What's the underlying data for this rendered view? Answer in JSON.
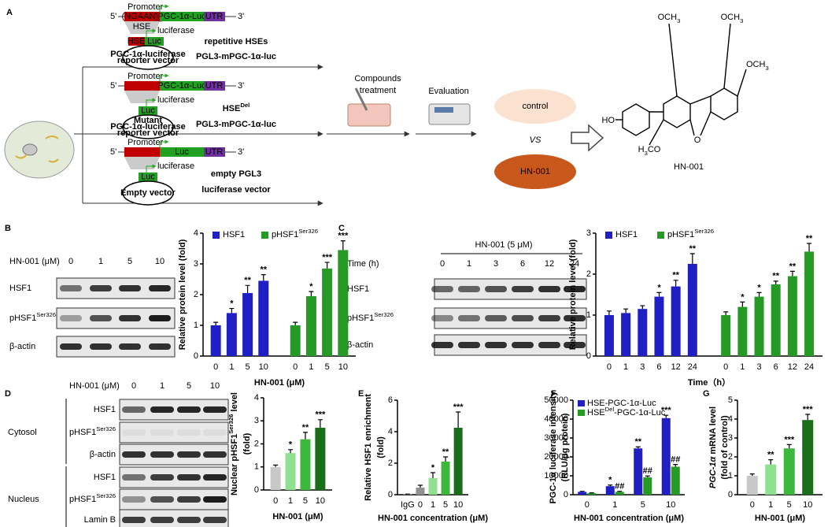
{
  "panel_labels": [
    "A",
    "B",
    "C",
    "D",
    "E",
    "F",
    "G"
  ],
  "diagram": {
    "constructs": [
      {
        "five": "5'",
        "promoter": "Promoter",
        "insert": [
          "(NGAAN)",
          {
            "sub": "n"
          }
        ],
        "gene": "PGC-1α-Luc",
        "utr": "UTR",
        "three": "3'",
        "hse": "HSE",
        "luc_arrow": "luciferase",
        "box_hse": "HSE",
        "box_luc": "Luc",
        "vector": [
          "PGC-1α-luciferase",
          "reporter vector"
        ],
        "title": [
          "repetitive HSEs",
          "PGL3-mPGC-1α-luc"
        ]
      },
      {
        "five": "5'",
        "promoter": "Promoter",
        "gene": "PGC-1α-Luc",
        "utr": "UTR",
        "three": "3'",
        "luc_arrow": "luciferase",
        "box_luc": "Luc",
        "vector": [
          "Mutant",
          "PGC-1α-luciferase",
          "reporter vector"
        ],
        "title": [
          [
            "HSE",
            {
              "sup": "Del"
            }
          ],
          "PGL3-mPGC-1α-luc"
        ]
      },
      {
        "five": "5'",
        "promoter": "Promoter",
        "gene": "Luc",
        "utr": "UTR",
        "three": "3'",
        "luc_arrow": "luciferase",
        "box_luc": "Luc",
        "vector": [
          "Empty vector"
        ],
        "title": [
          "empty PGL3",
          "luciferase vector"
        ]
      }
    ],
    "steps": [
      [
        "Compounds",
        "treatment"
      ],
      [
        "Evaluation"
      ]
    ],
    "compare": {
      "control": "control",
      "vs": "VS",
      "compound": "HN-001"
    },
    "structure": {
      "ho": "HO",
      "ome1": [
        "OCH",
        {
          "sub": "3"
        }
      ],
      "ome2": [
        "OCH",
        {
          "sub": "3"
        }
      ],
      "ome3": [
        "OCH",
        {
          "sub": "3"
        }
      ],
      "ome4": [
        "H",
        {
          "sub": "3"
        },
        "CO"
      ],
      "o": "O",
      "name": "HN-001"
    }
  },
  "blots": [
    {
      "header": "HN-001 (μM)",
      "lanes": [
        "0",
        "1",
        "5",
        "10"
      ],
      "rows": [
        "HSF1",
        [
          "pHSF1",
          {
            "sup": "Ser326"
          }
        ],
        "β-actin"
      ]
    },
    {
      "header": "HN-001 (5 μM)",
      "lane_title": "Time (h)",
      "lanes": [
        "0",
        "1",
        "3",
        "6",
        "12",
        "24"
      ],
      "rows": [
        "HSF1",
        [
          "pHSF1",
          {
            "sup": "Ser326"
          }
        ],
        "β-actin"
      ]
    },
    {
      "header": "HN-001 (μM)",
      "lanes": [
        "0",
        "1",
        "5",
        "10"
      ],
      "groups": [
        {
          "name": "Cytosol",
          "rows": [
            "HSF1",
            [
              "pHSF1",
              {
                "sup": "Ser326"
              }
            ],
            "β-actin"
          ]
        },
        {
          "name": "Nucleus",
          "rows": [
            "HSF1",
            [
              "pHSF1",
              {
                "sup": "Ser326"
              }
            ],
            "Lamin B"
          ]
        }
      ]
    }
  ],
  "chart_data": [
    {
      "type": "bar",
      "categories": [
        "0",
        "1",
        "5",
        "10"
      ],
      "legend": "top",
      "series": [
        {
          "name": "HSF1",
          "color": "#1f1fc4",
          "values": [
            1.0,
            1.4,
            2.05,
            2.45
          ],
          "errors": [
            0.1,
            0.15,
            0.25,
            0.2
          ],
          "significance": [
            null,
            "*",
            "**",
            "**"
          ]
        },
        {
          "name": [
            "pHSF1",
            {
              "sup": "Ser326"
            }
          ],
          "color": "#259a25",
          "values": [
            1.0,
            1.95,
            2.85,
            3.45
          ],
          "errors": [
            0.1,
            0.15,
            0.2,
            0.3
          ],
          "significance": [
            null,
            "*",
            "***",
            "***"
          ]
        }
      ],
      "ylim": [
        0,
        4
      ],
      "yticks": [
        0,
        1,
        2,
        3,
        4
      ],
      "ylabel": [
        "Relative protein level (fold)"
      ],
      "xlabel": "HN-001 (μM)"
    },
    {
      "type": "bar",
      "categories": [
        "0",
        "1",
        "3",
        "6",
        "12",
        "24"
      ],
      "legend": "top",
      "series": [
        {
          "name": "HSF1",
          "color": "#1f1fc4",
          "values": [
            1.0,
            1.05,
            1.15,
            1.45,
            1.7,
            2.25
          ],
          "errors": [
            0.1,
            0.1,
            0.08,
            0.1,
            0.15,
            0.25
          ],
          "significance": [
            null,
            null,
            null,
            "*",
            "**",
            "**"
          ]
        },
        {
          "name": [
            "pHSF1",
            {
              "sup": "Ser326"
            }
          ],
          "color": "#259a25",
          "values": [
            1.0,
            1.2,
            1.45,
            1.75,
            1.95,
            2.55
          ],
          "errors": [
            0.08,
            0.12,
            0.1,
            0.08,
            0.12,
            0.2
          ],
          "significance": [
            null,
            "*",
            "*",
            "**",
            "**",
            "**"
          ]
        }
      ],
      "ylim": [
        0,
        3
      ],
      "yticks": [
        0,
        1,
        2,
        3
      ],
      "ylabel": [
        "Relative protein level (fold)"
      ],
      "xlabel": "Time（h）"
    },
    {
      "type": "bar",
      "categories": [
        "0",
        "1",
        "5",
        "10"
      ],
      "color": [
        "#c8c8c8",
        "#8fe08f",
        "#3cb83c",
        "#1a6e1a"
      ],
      "values": [
        1.0,
        1.6,
        2.2,
        2.7
      ],
      "errors": [
        0.08,
        0.15,
        0.3,
        0.35
      ],
      "significance": [
        null,
        "*",
        "**",
        "***"
      ],
      "ylim": [
        0,
        4
      ],
      "yticks": [
        0,
        1,
        2,
        3,
        4
      ],
      "ylabel": [
        [
          "Nuclear pHSF1",
          {
            "sup": "Ser326"
          },
          " level"
        ],
        "(fold)"
      ],
      "xlabel": "HN-001 (μM)"
    },
    {
      "type": "bar",
      "categories": [
        "IgG",
        "0",
        "1",
        "5",
        "10"
      ],
      "color": [
        "#dcdcdc",
        "#909090",
        "#8fe08f",
        "#3cb83c",
        "#1a6e1a"
      ],
      "values": [
        0.02,
        0.45,
        1.05,
        2.1,
        4.25
      ],
      "errors": [
        0.02,
        0.15,
        0.35,
        0.3,
        1.0
      ],
      "significance": [
        null,
        null,
        "*",
        "**",
        "***"
      ],
      "ylim": [
        0,
        6
      ],
      "yticks": [
        0,
        2,
        4,
        6
      ],
      "ylabel": [
        "Relative HSF1 enrichment",
        "(fold)"
      ],
      "xlabel": "HN-001 concentration (μM)"
    },
    {
      "type": "bar",
      "categories": [
        "0",
        "1",
        "5",
        "10"
      ],
      "legend": "top-left",
      "series": [
        {
          "name": "HSE-PGC-1α-Luc",
          "color": "#1f1fc4",
          "values": [
            1500,
            4500,
            24500,
            40500
          ],
          "errors": [
            300,
            600,
            800,
            1500
          ],
          "significance": [
            null,
            "*",
            "**",
            "***"
          ]
        },
        {
          "name": [
            "HSE",
            {
              "sup": "Del"
            },
            "-PGC-1α-Luc"
          ],
          "color": "#259a25",
          "values": [
            800,
            1500,
            9200,
            14800
          ],
          "errors": [
            200,
            300,
            700,
            1200
          ],
          "significance": [
            null,
            "##",
            "##",
            "##"
          ]
        }
      ],
      "ylim": [
        0,
        50000
      ],
      "yticks": [
        0,
        10000,
        20000,
        30000,
        40000,
        50000
      ],
      "ylabel": [
        "PGC-1α luciferase intensity",
        "(RLU/μg protein)"
      ],
      "xlabel": "HN-001 concentration (μM)"
    },
    {
      "type": "bar",
      "categories": [
        "0",
        "1",
        "5",
        "10"
      ],
      "color": [
        "#c8c8c8",
        "#8fe08f",
        "#3cb83c",
        "#1a6e1a"
      ],
      "values": [
        1.0,
        1.6,
        2.45,
        3.95
      ],
      "errors": [
        0.1,
        0.25,
        0.2,
        0.3
      ],
      "significance": [
        null,
        "**",
        "***",
        "***"
      ],
      "ylim": [
        0,
        5
      ],
      "yticks": [
        0,
        1,
        2,
        3,
        4,
        5
      ],
      "ylabel": [
        [
          {
            "i": "PGC-1α"
          },
          " mRNA level"
        ],
        "(fold of control)"
      ],
      "xlabel": "HN-001 (μM)"
    }
  ]
}
